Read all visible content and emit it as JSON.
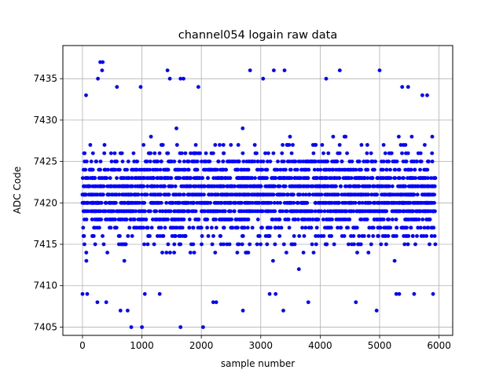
{
  "chart_data": {
    "type": "scatter",
    "title": "channel054 logain raw data",
    "xlabel": "sample number",
    "ylabel": "ADC Code",
    "xlim": [
      -330,
      6230
    ],
    "ylim": [
      7404,
      7439
    ],
    "xticks": [
      0,
      1000,
      2000,
      3000,
      4000,
      5000,
      6000
    ],
    "yticks": [
      7405,
      7410,
      7415,
      7420,
      7425,
      7430,
      7435
    ],
    "grid": true,
    "marker_color": "#0000ff",
    "n_samples": 6000,
    "x_range": [
      0,
      5940
    ],
    "core_band": [
      7414,
      7428
    ],
    "outliers": [
      {
        "x": 300,
        "y": 7437
      },
      {
        "x": 340,
        "y": 7437
      },
      {
        "x": 330,
        "y": 7436
      },
      {
        "x": 260,
        "y": 7435
      },
      {
        "x": 1430,
        "y": 7436
      },
      {
        "x": 1650,
        "y": 7435
      },
      {
        "x": 1700,
        "y": 7435
      },
      {
        "x": 1470,
        "y": 7435
      },
      {
        "x": 2820,
        "y": 7436
      },
      {
        "x": 3220,
        "y": 7436
      },
      {
        "x": 3400,
        "y": 7436
      },
      {
        "x": 4330,
        "y": 7436
      },
      {
        "x": 5000,
        "y": 7436
      },
      {
        "x": 4100,
        "y": 7435
      },
      {
        "x": 3040,
        "y": 7435
      },
      {
        "x": 980,
        "y": 7434
      },
      {
        "x": 580,
        "y": 7434
      },
      {
        "x": 1950,
        "y": 7434
      },
      {
        "x": 5380,
        "y": 7434
      },
      {
        "x": 5480,
        "y": 7434
      },
      {
        "x": 60,
        "y": 7433
      },
      {
        "x": 5720,
        "y": 7433
      },
      {
        "x": 5800,
        "y": 7433
      },
      {
        "x": 820,
        "y": 7405
      },
      {
        "x": 1000,
        "y": 7405
      },
      {
        "x": 1650,
        "y": 7405
      },
      {
        "x": 2030,
        "y": 7405
      },
      {
        "x": 640,
        "y": 7407
      },
      {
        "x": 760,
        "y": 7407
      },
      {
        "x": 2700,
        "y": 7407
      },
      {
        "x": 3380,
        "y": 7407
      },
      {
        "x": 4950,
        "y": 7407
      },
      {
        "x": 250,
        "y": 7408
      },
      {
        "x": 400,
        "y": 7408
      },
      {
        "x": 2200,
        "y": 7408
      },
      {
        "x": 2250,
        "y": 7408
      },
      {
        "x": 3800,
        "y": 7408
      },
      {
        "x": 4600,
        "y": 7408
      },
      {
        "x": 0,
        "y": 7409
      },
      {
        "x": 80,
        "y": 7409
      },
      {
        "x": 1050,
        "y": 7409
      },
      {
        "x": 1300,
        "y": 7409
      },
      {
        "x": 3150,
        "y": 7409
      },
      {
        "x": 3250,
        "y": 7409
      },
      {
        "x": 5280,
        "y": 7409
      },
      {
        "x": 5330,
        "y": 7409
      },
      {
        "x": 5580,
        "y": 7409
      },
      {
        "x": 5900,
        "y": 7409
      }
    ]
  }
}
